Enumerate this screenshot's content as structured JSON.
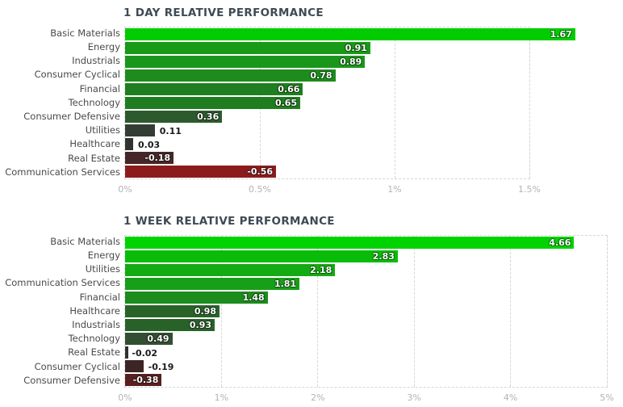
{
  "theme": {
    "background": "#ffffff",
    "title_color": "#3f4a54",
    "category_label_color": "#4a4a4a",
    "tick_label_color": "#b3b3b3",
    "grid_color": "#d6d6d6",
    "value_label_inside_color": "#ffffff",
    "value_label_outside_color": "#1a1a1a",
    "positive_bright_color": "#00cc00",
    "negative_bright_color": "#8c1c1c"
  },
  "chart_data": [
    {
      "type": "bar",
      "orientation": "horizontal",
      "title": "1 DAY RELATIVE PERFORMANCE",
      "xlabel": "",
      "ylabel": "",
      "unit": "%",
      "xlim": [
        0,
        1.5
      ],
      "grid": "dashed-vertical",
      "legend": "none",
      "x_ticks": [
        {
          "value": 0,
          "label": "0%"
        },
        {
          "value": 0.5,
          "label": "0.5%"
        },
        {
          "value": 1,
          "label": "1%"
        },
        {
          "value": 1.5,
          "label": "1.5%"
        }
      ],
      "categories": [
        "Basic Materials",
        "Energy",
        "Industrials",
        "Consumer Cyclical",
        "Financial",
        "Technology",
        "Consumer Defensive",
        "Utilities",
        "Healthcare",
        "Real Estate",
        "Communication Services"
      ],
      "values": [
        1.67,
        0.91,
        0.89,
        0.78,
        0.66,
        0.65,
        0.36,
        0.11,
        0.03,
        -0.18,
        -0.56
      ],
      "value_labels": [
        "1.67",
        "0.91",
        "0.89",
        "0.78",
        "0.66",
        "0.65",
        "0.36",
        "0.11",
        "0.03",
        "-0.18",
        "-0.56"
      ],
      "bar_colors": [
        "#00cc00",
        "#189918",
        "#1a971a",
        "#1d8c1d",
        "#1f7e1f",
        "#1f7d1f",
        "#2d5a2d",
        "#333d33",
        "#303430",
        "#462626",
        "#8c1c1c"
      ],
      "value_label_positions": [
        "inside",
        "inside",
        "inside",
        "inside",
        "inside",
        "inside",
        "inside",
        "outside",
        "outside",
        "inside",
        "inside"
      ]
    },
    {
      "type": "bar",
      "orientation": "horizontal",
      "title": "1 WEEK RELATIVE PERFORMANCE",
      "xlabel": "",
      "ylabel": "",
      "unit": "%",
      "xlim": [
        0,
        5
      ],
      "grid": "dashed-vertical",
      "legend": "none",
      "x_ticks": [
        {
          "value": 0,
          "label": "0%"
        },
        {
          "value": 1,
          "label": "1%"
        },
        {
          "value": 2,
          "label": "2%"
        },
        {
          "value": 3,
          "label": "3%"
        },
        {
          "value": 4,
          "label": "4%"
        },
        {
          "value": 5,
          "label": "5%"
        }
      ],
      "categories": [
        "Basic Materials",
        "Energy",
        "Utilities",
        "Communication Services",
        "Financial",
        "Healthcare",
        "Industrials",
        "Technology",
        "Real Estate",
        "Consumer Cyclical",
        "Consumer Defensive"
      ],
      "values": [
        4.66,
        2.83,
        2.18,
        1.81,
        1.48,
        0.98,
        0.93,
        0.49,
        -0.02,
        -0.19,
        -0.38
      ],
      "value_labels": [
        "4.66",
        "2.83",
        "2.18",
        "1.81",
        "1.48",
        "0.98",
        "0.93",
        "0.49",
        "-0.02",
        "-0.19",
        "-0.38"
      ],
      "bar_colors": [
        "#00d300",
        "#09bc09",
        "#13aa13",
        "#189e18",
        "#1c8c1c",
        "#286428",
        "#296229",
        "#324f32",
        "#303030",
        "#3b2525",
        "#582020"
      ],
      "value_label_positions": [
        "inside",
        "inside",
        "inside",
        "inside",
        "inside",
        "inside",
        "inside",
        "inside",
        "outside",
        "outside",
        "inside"
      ]
    }
  ]
}
